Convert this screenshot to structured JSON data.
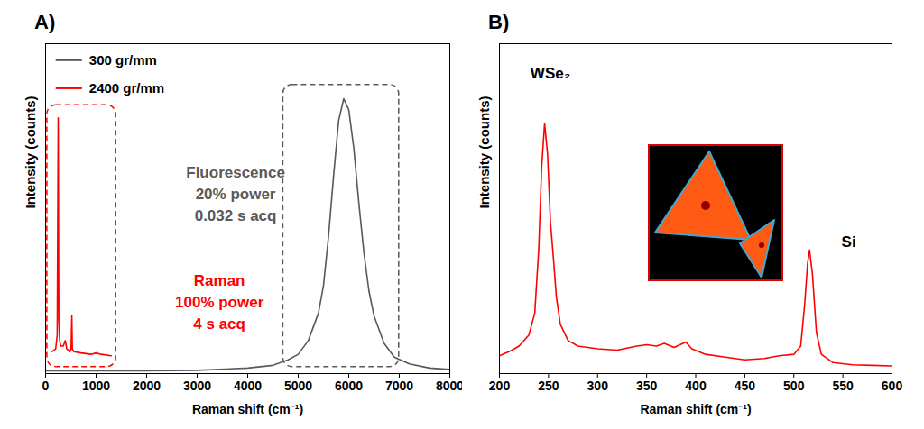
{
  "chart_data": [
    {
      "type": "line",
      "title": "A)",
      "x_label": "Raman shift (cm⁻¹)",
      "y_label": "Intensity (counts)",
      "xlim": [
        0,
        8000
      ],
      "xticks": [
        0,
        1000,
        2000,
        3000,
        4000,
        5000,
        6000,
        7000,
        8000
      ],
      "ylim": [
        0,
        120
      ],
      "yticks": [],
      "tick_labels": "x",
      "legend": "top-left",
      "series": [
        {
          "name": "300 gr/mm",
          "color": "#595959",
          "x": [
            0,
            500,
            1000,
            2000,
            3000,
            4000,
            4500,
            4800,
            5000,
            5200,
            5400,
            5500,
            5600,
            5700,
            5800,
            5900,
            6000,
            6100,
            6200,
            6300,
            6400,
            6500,
            6700,
            6900,
            7200,
            7600,
            8000
          ],
          "values": [
            1,
            1,
            1,
            1,
            1.2,
            2,
            3,
            5,
            7,
            12,
            22,
            32,
            50,
            72,
            92,
            100,
            96,
            82,
            62,
            44,
            30,
            21,
            11,
            6,
            3.5,
            2,
            1.5
          ]
        },
        {
          "name": "2400 gr/mm",
          "color": "#ff0000",
          "x": [
            130,
            200,
            230,
            250,
            262,
            280,
            300,
            350,
            370,
            390,
            420,
            480,
            505,
            520,
            530,
            560,
            700,
            900,
            1000,
            1100,
            1300
          ],
          "values": [
            8,
            9,
            14,
            93,
            20,
            12,
            10,
            10,
            11,
            12,
            9,
            8,
            9,
            21,
            9,
            8,
            7.5,
            7,
            7.5,
            7,
            6.5
          ]
        }
      ],
      "annotations": [
        {
          "text": [
            "Fluorescence",
            "20% power",
            "0.032 s acq"
          ],
          "series": "300 gr/mm"
        },
        {
          "text": [
            "Raman",
            "100% power",
            "4 s acq"
          ],
          "series": "2400 gr/mm"
        }
      ]
    },
    {
      "type": "line",
      "title": "B)",
      "x_label": "Raman shift (cm⁻¹)",
      "y_label": "Intensity (counts)",
      "xlim": [
        200,
        600
      ],
      "xticks": [
        200,
        250,
        300,
        350,
        400,
        450,
        500,
        550,
        600
      ],
      "ylim": [
        0,
        120
      ],
      "yticks": [],
      "tick_labels": "x",
      "series": [
        {
          "color": "#ff0000",
          "x": [
            200,
            210,
            220,
            230,
            236,
            240,
            243,
            246,
            249,
            252,
            255,
            258,
            262,
            270,
            280,
            300,
            320,
            340,
            350,
            360,
            368,
            378,
            390,
            396,
            410,
            430,
            450,
            470,
            485,
            500,
            507,
            511,
            514,
            516,
            519,
            523,
            528,
            540,
            560,
            580,
            600
          ],
          "values": [
            6.5,
            8,
            10,
            14,
            22,
            45,
            75,
            91,
            80,
            55,
            42,
            28,
            18,
            12,
            10,
            9,
            8.5,
            10,
            10.5,
            10,
            11,
            9.5,
            11.5,
            9,
            7,
            6,
            5,
            5.5,
            6.5,
            7,
            10,
            25,
            40,
            45,
            36,
            15,
            7,
            4,
            3.2,
            3,
            2.8
          ]
        }
      ],
      "annotations": [
        {
          "text": "WSe₂"
        },
        {
          "text": "Si"
        }
      ]
    }
  ]
}
